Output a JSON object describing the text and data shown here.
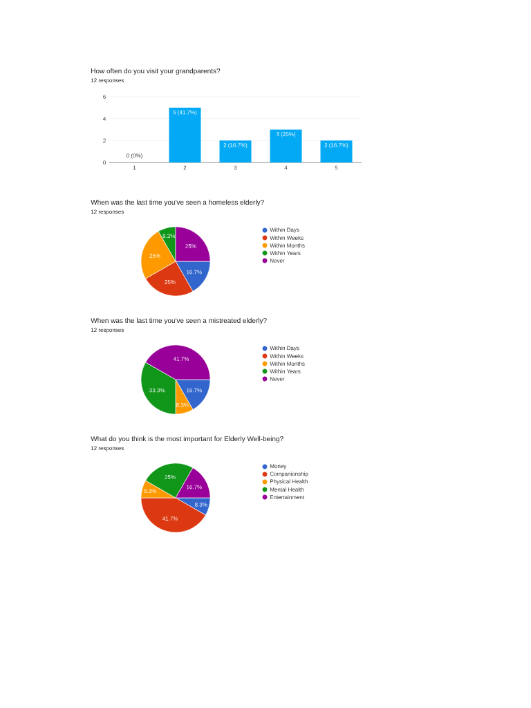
{
  "chart_data": [
    {
      "type": "bar",
      "title": "How often do you visit your grandparents?",
      "subtitle": "12 responses",
      "categories": [
        "1",
        "2",
        "3",
        "4",
        "5"
      ],
      "values": [
        0,
        5,
        2,
        3,
        2
      ],
      "value_labels": [
        "0 (0%)",
        "5 (41.7%)",
        "2 (16.7%)",
        "3 (25%)",
        "2 (16.7%)"
      ],
      "color": "#03a9f4",
      "ylim": [
        0,
        6
      ],
      "yticks": [
        0,
        2,
        4,
        6
      ],
      "grid": "y"
    },
    {
      "type": "pie",
      "title": "When was the last time you've seen a homeless elderly?",
      "subtitle": "12 responses",
      "categories": [
        "Within Days",
        "Within Weeks",
        "Within Months",
        "Within Years",
        "Never"
      ],
      "values": [
        16.7,
        25,
        25,
        8.3,
        25
      ],
      "value_labels": [
        "16.7%",
        "25%",
        "25%",
        "8.3%",
        "25%"
      ],
      "colors": [
        "#3366cc",
        "#dc3912",
        "#ff9900",
        "#109618",
        "#990099"
      ],
      "legend": "right"
    },
    {
      "type": "pie",
      "title": "When was the last time you've seen a mistreated elderly?",
      "subtitle": "12 responses",
      "categories": [
        "Within Days",
        "Within Weeks",
        "Within Months",
        "Within Years",
        "Never"
      ],
      "values": [
        16.7,
        0,
        8.3,
        33.3,
        41.7
      ],
      "value_labels": [
        "16.7%",
        null,
        "8.3%",
        "33.3%",
        "41.7%"
      ],
      "colors": [
        "#3366cc",
        "#dc3912",
        "#ff9900",
        "#109618",
        "#990099"
      ],
      "legend": "right"
    },
    {
      "type": "pie",
      "title": "What do you think is the most important for Elderly Well-being?",
      "subtitle": "12 responses",
      "categories": [
        "Money",
        "Companionship",
        "Physical Health",
        "Mental Health",
        "Entertainment"
      ],
      "values": [
        8.3,
        41.7,
        8.3,
        25,
        16.7
      ],
      "value_labels": [
        "8.3%",
        "41.7%",
        "8.3%",
        "25%",
        "16.7%"
      ],
      "colors": [
        "#3366cc",
        "#dc3912",
        "#ff9900",
        "#109618",
        "#990099"
      ],
      "legend": "right"
    }
  ]
}
